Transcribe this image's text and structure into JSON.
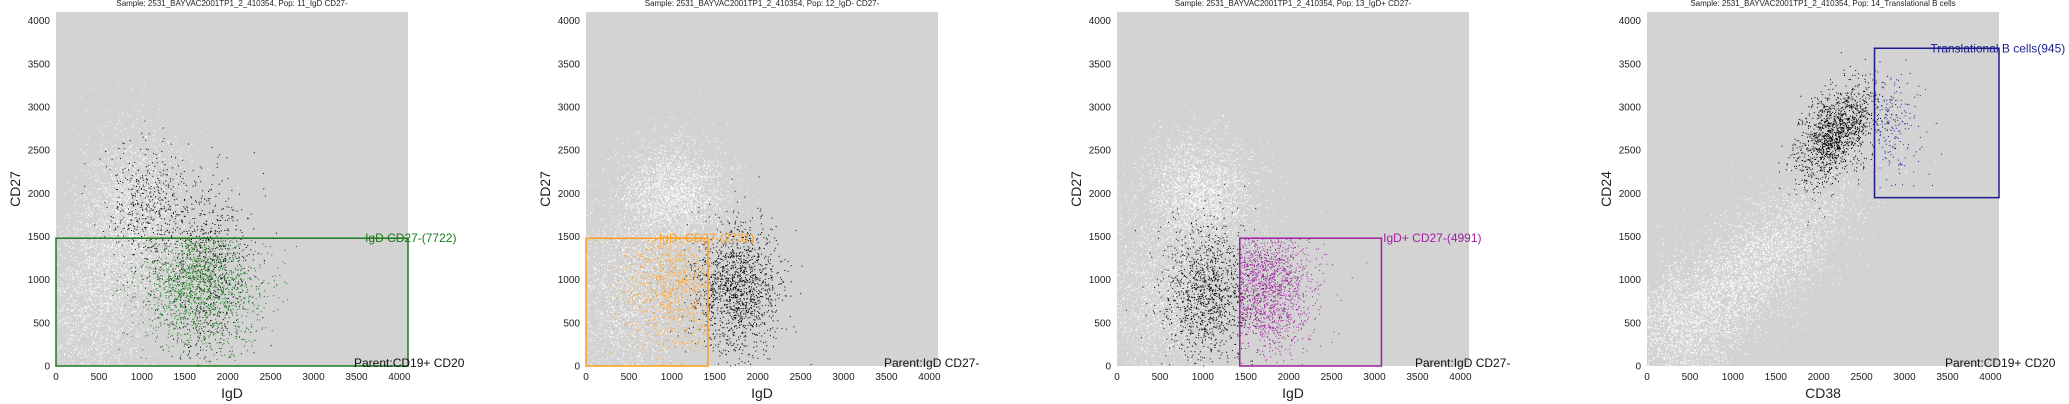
{
  "colors": {
    "plot_background": "#d3d3d3",
    "ungated_events": "#ffffff",
    "parent_events": "#000000",
    "green": "#1a7a1a",
    "orange": "#ff9d1c",
    "purple": "#a020a0",
    "navy": "#1c1c8c"
  },
  "chart_data": [
    {
      "type": "scatter",
      "title": "Sample: 2531_BAYVAC2001TP1_2_410354, Pop: 11_IgD CD27-",
      "xlabel": "IgD",
      "ylabel": "CD27",
      "xlim": [
        0,
        4100
      ],
      "ylim": [
        0,
        4100
      ],
      "xticks": [
        0,
        500,
        1000,
        1500,
        2000,
        2500,
        3000,
        3500,
        4000
      ],
      "yticks": [
        0,
        500,
        1000,
        1500,
        2000,
        2500,
        3000,
        3500,
        4000
      ],
      "gate": {
        "label": "IgD CD27-(7722)",
        "color": "green",
        "x": [
          0,
          4100
        ],
        "y": [
          0,
          1480
        ]
      },
      "gate_label_pos": [
        3600,
        1480
      ],
      "parent_label": "Parent:CD19+ CD20",
      "gated_cloud": {
        "color": "green",
        "cx": 1650,
        "cy": 950,
        "sx": 350,
        "sy": 380,
        "n": 1700
      },
      "clouds": [
        {
          "color": "white",
          "cx": 900,
          "cy": 1700,
          "sx": 320,
          "sy": 520,
          "n": 2200
        },
        {
          "color": "white",
          "cx": 400,
          "cy": 700,
          "sx": 320,
          "sy": 500,
          "n": 1400
        },
        {
          "color": "black",
          "cx": 1050,
          "cy": 1850,
          "sx": 250,
          "sy": 350,
          "n": 450
        },
        {
          "color": "black",
          "cx": 1800,
          "cy": 1400,
          "sx": 250,
          "sy": 400,
          "n": 450
        },
        {
          "color": "black",
          "cx": 1700,
          "cy": 700,
          "sx": 300,
          "sy": 400,
          "n": 250
        }
      ]
    },
    {
      "type": "scatter",
      "title": "Sample: 2531_BAYVAC2001TP1_2_410354, Pop: 12_IgD- CD27-",
      "xlabel": "IgD",
      "ylabel": "CD27",
      "xlim": [
        0,
        4100
      ],
      "ylim": [
        0,
        4100
      ],
      "xticks": [
        0,
        500,
        1000,
        1500,
        2000,
        2500,
        3000,
        3500,
        4000
      ],
      "yticks": [
        0,
        500,
        1000,
        1500,
        2000,
        2500,
        3000,
        3500,
        4000
      ],
      "gate": {
        "label": "IgD- CD27-(2731)",
        "color": "orange",
        "x": [
          0,
          1420
        ],
        "y": [
          0,
          1480
        ]
      },
      "gate_label_pos": [
        850,
        1480
      ],
      "parent_label": "Parent:IgD CD27-",
      "gated_cloud": {
        "color": "orange",
        "cx": 1000,
        "cy": 900,
        "sx": 300,
        "sy": 400,
        "n": 1200
      },
      "clouds": [
        {
          "color": "white",
          "cx": 1000,
          "cy": 2000,
          "sx": 320,
          "sy": 300,
          "n": 2200
        },
        {
          "color": "white",
          "cx": 500,
          "cy": 800,
          "sx": 350,
          "sy": 550,
          "n": 1600
        },
        {
          "color": "black",
          "cx": 1750,
          "cy": 900,
          "sx": 250,
          "sy": 380,
          "n": 1400
        }
      ]
    },
    {
      "type": "scatter",
      "title": "Sample: 2531_BAYVAC2001TP1_2_410354, Pop: 13_IgD+ CD27-",
      "xlabel": "IgD",
      "ylabel": "CD27",
      "xlim": [
        0,
        4100
      ],
      "ylim": [
        0,
        4100
      ],
      "xticks": [
        0,
        500,
        1000,
        1500,
        2000,
        2500,
        3000,
        3500,
        4000
      ],
      "yticks": [
        0,
        500,
        1000,
        1500,
        2000,
        2500,
        3000,
        3500,
        4000
      ],
      "gate": {
        "label": "IgD+ CD27-(4991)",
        "color": "purple",
        "x": [
          1430,
          3080
        ],
        "y": [
          0,
          1480
        ]
      },
      "gate_label_pos": [
        3100,
        1480
      ],
      "parent_label": "Parent:IgD CD27-",
      "gated_cloud": {
        "color": "purple",
        "cx": 1750,
        "cy": 950,
        "sx": 280,
        "sy": 380,
        "n": 1700
      },
      "clouds": [
        {
          "color": "white",
          "cx": 950,
          "cy": 2000,
          "sx": 320,
          "sy": 330,
          "n": 2300
        },
        {
          "color": "white",
          "cx": 500,
          "cy": 800,
          "sx": 350,
          "sy": 550,
          "n": 1600
        },
        {
          "color": "black",
          "cx": 1050,
          "cy": 850,
          "sx": 260,
          "sy": 400,
          "n": 1200
        }
      ]
    },
    {
      "type": "scatter",
      "title": "Sample: 2531_BAYVAC2001TP1_2_410354, Pop: 14_Translational B cells",
      "xlabel": "CD38",
      "ylabel": "CD24",
      "xlim": [
        0,
        4100
      ],
      "ylim": [
        0,
        4100
      ],
      "xticks": [
        0,
        500,
        1000,
        1500,
        2000,
        2500,
        3000,
        3500,
        4000
      ],
      "yticks": [
        0,
        500,
        1000,
        1500,
        2000,
        2500,
        3000,
        3500,
        4000
      ],
      "gate": {
        "label": "Translational B cells(945)",
        "color": "navy",
        "x": [
          2650,
          4100
        ],
        "y": [
          1950,
          3680
        ]
      },
      "gate_label_pos": [
        3300,
        3680
      ],
      "parent_label": "Parent:CD19+ CD20",
      "gated_cloud": {
        "color": "navy",
        "cx": 2800,
        "cy": 2800,
        "sx": 200,
        "sy": 300,
        "n": 260
      },
      "clouds": [
        {
          "color": "white",
          "cx": 1200,
          "cy": 1100,
          "sx": 600,
          "sy": 550,
          "n": 3600,
          "corr": 0.75
        },
        {
          "color": "white",
          "cx": 400,
          "cy": 500,
          "sx": 300,
          "sy": 400,
          "n": 1200
        },
        {
          "color": "black",
          "cx": 2200,
          "cy": 2700,
          "sx": 230,
          "sy": 280,
          "n": 1400,
          "corr": 0.5
        }
      ]
    }
  ]
}
